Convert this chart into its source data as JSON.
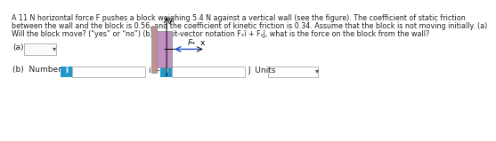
{
  "text_line1": "A 11 N horizontal force F pushes a block weighing 5.4 N against a vertical wall (see the figure). The coefficient of static friction",
  "text_line2": "between the wall and the block is 0.56, and the coefficient of kinetic friction is 0.34. Assume that the block is not moving initially. (a)",
  "text_line3": "Will the block move? (“yes” or “no”) (b) In unit-vector notation Fₓî + Fᵧĵ, what is the force on the block from the wall?",
  "bg_color": "#ffffff",
  "text_color": "#222222",
  "text_fontsize": 5.8,
  "blue_btn_color": "#2196c8",
  "box_fill": "#c090c0",
  "wall_fill": "#c09090",
  "axis_color": "#000000",
  "arrow_color": "#2050cc",
  "label_a": "(a)",
  "label_b": "(b)  Number",
  "units_label": "Units"
}
